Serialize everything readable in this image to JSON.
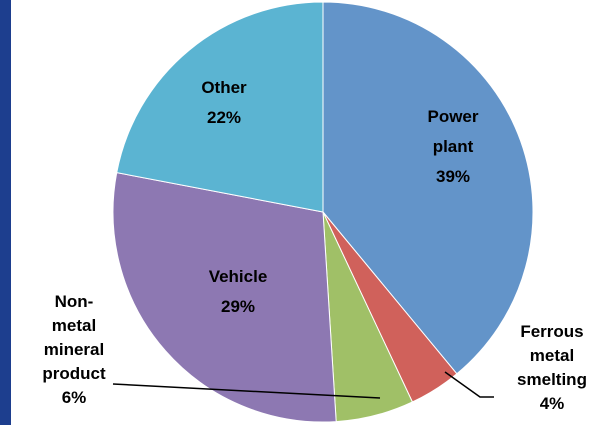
{
  "chart_data": {
    "type": "pie",
    "categories": [
      "Power plant",
      "Ferrous metal smelting",
      "Non-metal mineral product",
      "Vehicle",
      "Other"
    ],
    "values": [
      39,
      4,
      6,
      29,
      22
    ],
    "value_labels": [
      "39%",
      "4%",
      "6%",
      "29%",
      "22%"
    ],
    "colors": [
      "#6394c9",
      "#d0615b",
      "#a0c067",
      "#8d78b2",
      "#5bb4d2"
    ]
  }
}
